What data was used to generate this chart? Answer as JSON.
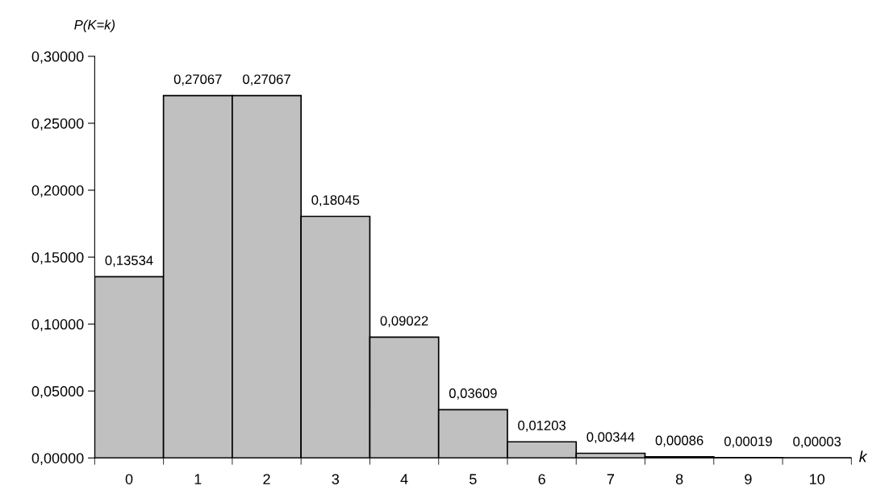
{
  "chart_data": {
    "type": "bar",
    "xlabel": "k",
    "ylabel": "P(K=k)",
    "categories": [
      "0",
      "1",
      "2",
      "3",
      "4",
      "5",
      "6",
      "7",
      "8",
      "9",
      "10"
    ],
    "values": [
      0.13534,
      0.27067,
      0.27067,
      0.18045,
      0.09022,
      0.03609,
      0.01203,
      0.00344,
      0.00086,
      0.00019,
      3e-05
    ],
    "value_labels": [
      "0,13534",
      "0,27067",
      "0,27067",
      "0,18045",
      "0,09022",
      "0,03609",
      "0,01203",
      "0,00344",
      "0,00086",
      "0,00019",
      "0,00003"
    ],
    "color": "#c0c0c0",
    "ylim": [
      0,
      0.3
    ],
    "yticks": [
      {
        "value": 0,
        "label": "0,00000"
      },
      {
        "value": 0.05,
        "label": "0,05000"
      },
      {
        "value": 0.1,
        "label": "0,10000"
      },
      {
        "value": 0.15,
        "label": "0,15000"
      },
      {
        "value": 0.2,
        "label": "0,20000"
      },
      {
        "value": 0.25,
        "label": "0,25000"
      },
      {
        "value": 0.3,
        "label": "0,30000"
      }
    ],
    "grid": false,
    "legend": false
  }
}
